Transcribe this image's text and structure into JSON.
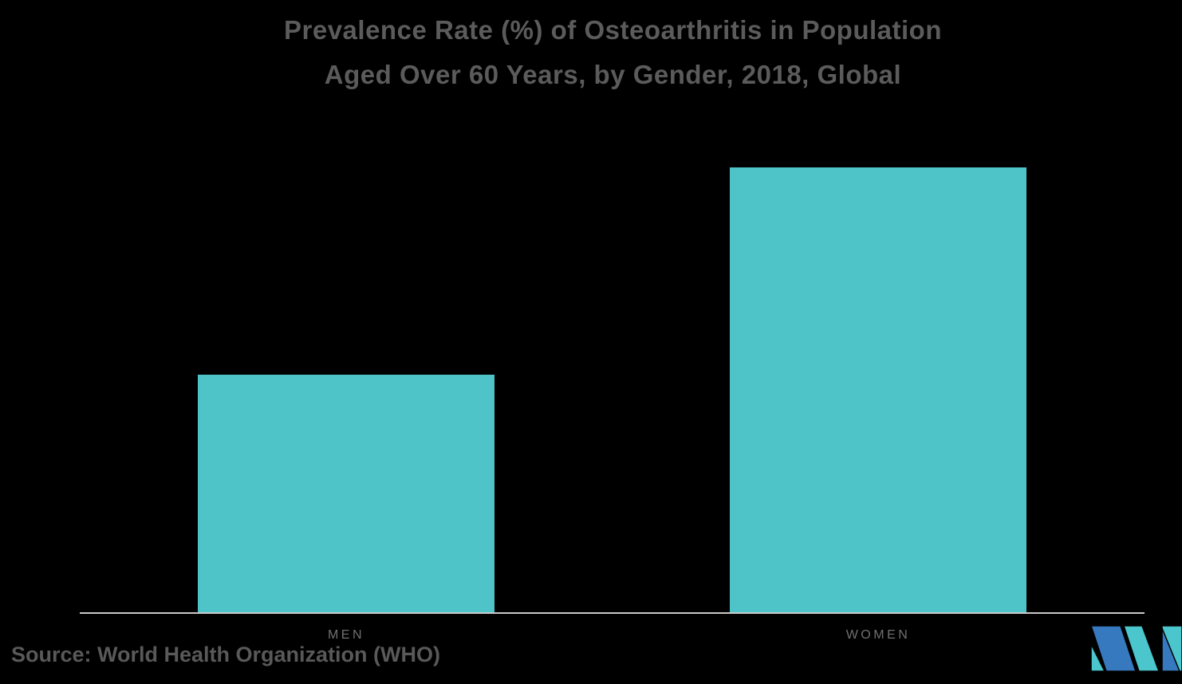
{
  "title": {
    "line1": "Prevalence Rate (%) of Osteoarthritis in Population",
    "line2": "Aged Over 60 Years, by Gender, 2018, Global"
  },
  "source_note": "Source: World Health Organization (WHO)",
  "chart_data": {
    "type": "bar",
    "title": "Prevalence Rate (%) of Osteoarthritis in Population Aged Over 60 Years, by Gender, 2018, Global",
    "categories": [
      "MEN",
      "WOMEN"
    ],
    "values": [
      9.6,
      18
    ],
    "unit": "%",
    "xlabel": "",
    "ylabel": "",
    "ylim": [
      0,
      20
    ],
    "grid": false,
    "y_axis_shown": false,
    "value_labels_shown": false,
    "legend": "none",
    "bar_color": "#4FC4C8",
    "axis_line_color": "#C9C9C9",
    "label_color": "#707070",
    "title_color": "#5B5B5B"
  },
  "logo": {
    "name": "mordor-intelligence-logo",
    "teal": "#4BC6CD",
    "blue": "#3779BE"
  }
}
